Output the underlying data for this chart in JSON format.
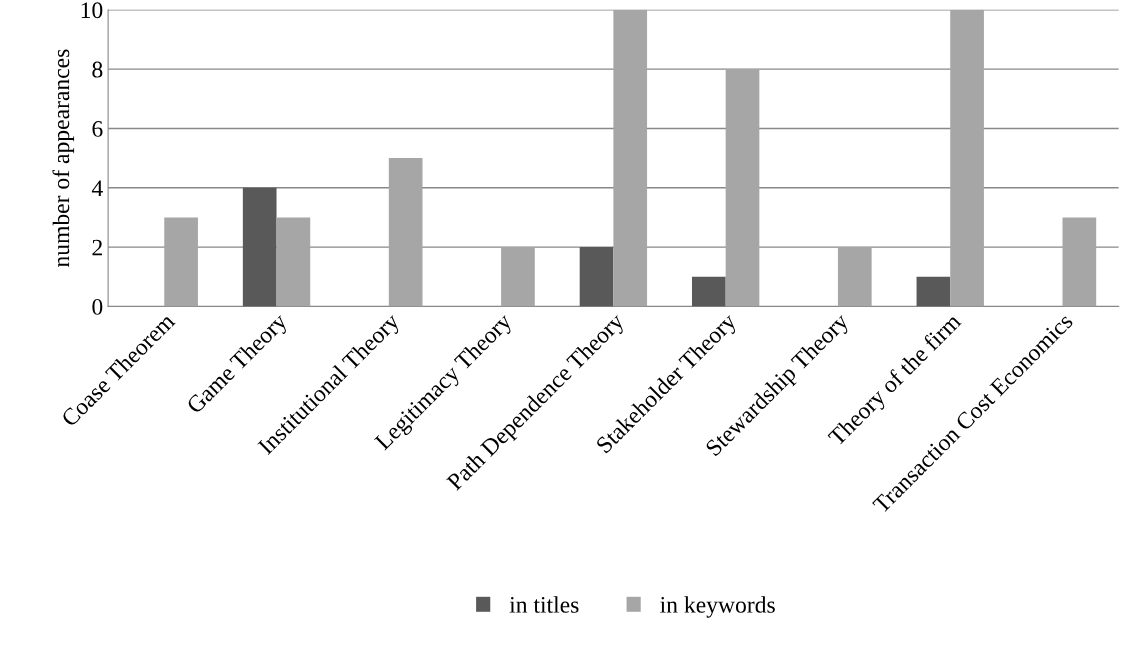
{
  "chart_data": {
    "type": "bar",
    "ylabel": "number of appearances",
    "categories": [
      "Coase Theorem",
      "Game Theory",
      "Institutional Theory",
      "Legitimacy Theory",
      "Path Dependence Theory",
      "Stakeholder Theory",
      "Stewardship Theory",
      "Theory of the firm",
      "Transaction Cost Economics"
    ],
    "series": [
      {
        "name": "in titles",
        "color": "#595959",
        "values": [
          0,
          4,
          0,
          0,
          2,
          1,
          0,
          1,
          0
        ]
      },
      {
        "name": "in keywords",
        "color": "#a6a6a6",
        "values": [
          3,
          3,
          5,
          2,
          10,
          8,
          2,
          10,
          3
        ]
      }
    ],
    "ylim": [
      0,
      10
    ],
    "yticks": [
      0,
      2,
      4,
      6,
      8,
      10
    ],
    "grid": "y",
    "legend": "bottom"
  }
}
